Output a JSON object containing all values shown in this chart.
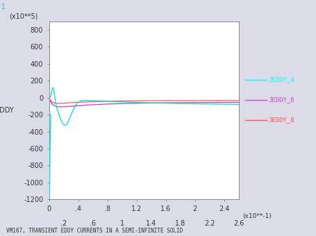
{
  "title": "VM167, TRANSIENT EDDY CURRENTS IN A SEMI-INFINITE SOLID",
  "ylabel": "EDDY",
  "xlabel_unit": "(x10**-1)",
  "ylabel_unit": "(x10**5)",
  "background_color": "#dcdce8",
  "plot_bg_color": "#ffffff",
  "xlim": [
    0,
    2.6
  ],
  "ylim": [
    -1200,
    900
  ],
  "yticks": [
    -1200,
    -1000,
    -800,
    -600,
    -400,
    -200,
    0,
    200,
    400,
    600,
    800
  ],
  "xticks_major": [
    0,
    0.4,
    0.8,
    1.2,
    1.6,
    2.0,
    2.4
  ],
  "xtick_major_labels": [
    "0",
    ".4",
    ".8",
    "1.2",
    "1.6",
    "2",
    "2.4"
  ],
  "xticks_minor": [
    0.2,
    0.6,
    1.0,
    1.4,
    1.8,
    2.2,
    2.6
  ],
  "xtick_minor_labels": [
    ".2",
    ".6",
    "1",
    "1.4",
    "1.8",
    "2.2",
    "2.6"
  ],
  "legend_labels": [
    "JEDDY_4",
    "JEDDY_6",
    "JEDDY_8"
  ],
  "legend_colors": [
    "#00ffff",
    "#cc44cc",
    "#ff5555"
  ],
  "line_colors": [
    "#00dddd",
    "#bb44bb",
    "#ff5555"
  ],
  "corner_label": "1"
}
